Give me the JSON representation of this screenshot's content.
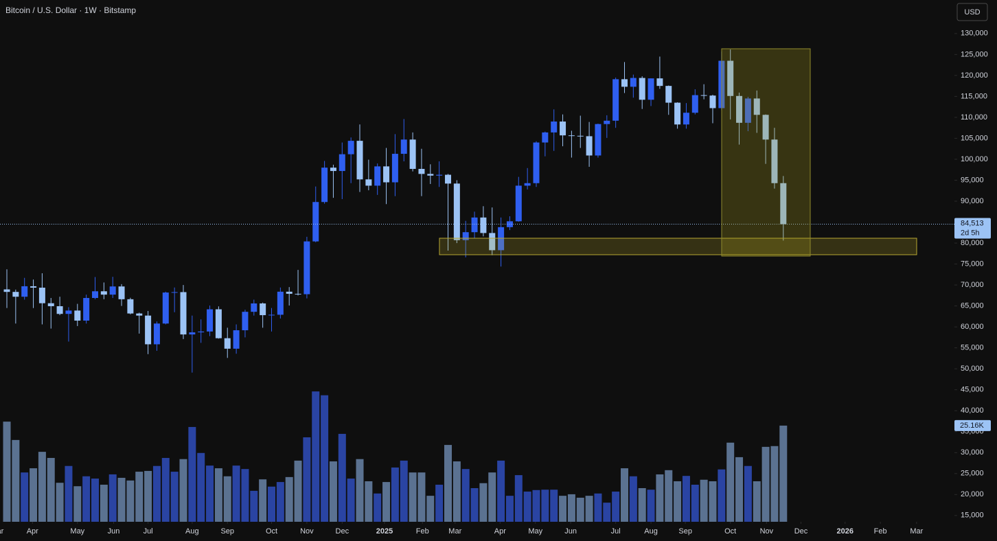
{
  "chart_data": {
    "type": "candlestick",
    "title": "Bitcoin / U.S. Dollar · 1W · Bitstamp",
    "currency": "USD",
    "open": [
      68950,
      68350,
      67200,
      69700,
      69360,
      65650,
      64940,
      63100,
      63900,
      61500,
      66900,
      68500,
      67700,
      69650,
      66600,
      63200,
      62700,
      55850,
      60800,
      68200,
      68300,
      58200,
      58700,
      58900,
      64200,
      57300,
      54800,
      59200,
      63600,
      65600,
      62800,
      62900,
      68400,
      67900,
      67800,
      80400,
      89800,
      98000,
      97200,
      101200,
      104400,
      95200,
      93700,
      98300,
      94500,
      101300,
      104700,
      97700,
      96500,
      96100,
      96300,
      94200,
      80700,
      82600,
      86100,
      82400,
      78300,
      83800,
      85200,
      93700,
      94300,
      104000,
      106400,
      109000,
      105700,
      105600,
      105500,
      100900,
      108400,
      109200,
      119100,
      117300,
      119400,
      114200,
      119300,
      117500,
      113500,
      108300,
      111100,
      115300,
      115200,
      112200,
      123500,
      115100,
      108700,
      114500,
      110600,
      104700,
      94300
    ],
    "high": [
      73750,
      68900,
      71700,
      71300,
      72800,
      66900,
      67200,
      64700,
      65500,
      67700,
      71900,
      70600,
      71950,
      70200,
      66950,
      63400,
      63800,
      61300,
      68400,
      69400,
      70000,
      62700,
      61800,
      65100,
      64900,
      59800,
      60600,
      64100,
      66500,
      65800,
      64500,
      69400,
      69500,
      73600,
      81500,
      93500,
      99600,
      98700,
      104000,
      105200,
      108300,
      99900,
      99000,
      102700,
      106000,
      109600,
      106400,
      102500,
      98800,
      99500,
      96500,
      95000,
      85300,
      87500,
      88800,
      88500,
      86100,
      86400,
      95800,
      97900,
      104300,
      106600,
      111900,
      110700,
      106800,
      110400,
      108900,
      108500,
      110500,
      119500,
      123200,
      120200,
      119800,
      119300,
      124500,
      117600,
      113600,
      113400,
      116700,
      117900,
      115400,
      125700,
      126200,
      115900,
      114900,
      116400,
      110700,
      107500,
      96000
    ],
    "low": [
      64500,
      60800,
      66500,
      64500,
      60600,
      59600,
      62800,
      56500,
      60200,
      60800,
      66600,
      66600,
      66900,
      65000,
      63000,
      58400,
      53500,
      54300,
      60600,
      63500,
      57100,
      49100,
      56200,
      57800,
      57200,
      52600,
      53600,
      57500,
      62700,
      59800,
      58900,
      62000,
      65100,
      67500,
      66800,
      80200,
      89400,
      90800,
      90500,
      94300,
      92200,
      92600,
      91500,
      89300,
      91200,
      99500,
      97100,
      91200,
      94100,
      93400,
      78200,
      80000,
      76600,
      81200,
      81600,
      77100,
      74400,
      83100,
      85100,
      92800,
      93400,
      100700,
      102000,
      103100,
      100400,
      102700,
      98200,
      100400,
      105100,
      107500,
      115800,
      114700,
      112000,
      112700,
      116800,
      110600,
      107300,
      107300,
      110700,
      114300,
      108600,
      111700,
      109500,
      103500,
      106700,
      106300,
      98900,
      93000,
      80600
    ],
    "close": [
      68350,
      67200,
      69700,
      69360,
      65650,
      64940,
      63100,
      63900,
      61500,
      66900,
      68500,
      67700,
      69650,
      66600,
      63200,
      62700,
      55850,
      60800,
      68200,
      68300,
      58200,
      58700,
      58900,
      64200,
      57300,
      54800,
      59200,
      63600,
      65600,
      62800,
      62900,
      68400,
      67900,
      67800,
      80400,
      89800,
      98000,
      97200,
      101200,
      104400,
      95200,
      93700,
      98300,
      94500,
      101300,
      104700,
      97700,
      96500,
      96100,
      96300,
      94200,
      80700,
      82600,
      86100,
      82400,
      78300,
      83800,
      85200,
      93700,
      94300,
      104000,
      106400,
      109000,
      105700,
      105600,
      105500,
      100900,
      108400,
      109200,
      119100,
      117300,
      119400,
      114200,
      119300,
      117500,
      113500,
      108300,
      111100,
      115300,
      115200,
      112200,
      123500,
      115100,
      108700,
      114500,
      110600,
      104700,
      94300,
      84513
    ],
    "close_label": "84,513",
    "countdown": "2d 5h",
    "volume": [
      26200,
      21400,
      12900,
      14000,
      18300,
      16700,
      10200,
      14600,
      9300,
      11900,
      11300,
      9700,
      12400,
      11500,
      10800,
      13100,
      13300,
      14600,
      16700,
      13100,
      16400,
      24800,
      18000,
      14700,
      14000,
      11900,
      14700,
      13800,
      8100,
      11100,
      9200,
      10400,
      11700,
      16000,
      22100,
      34100,
      33100,
      15800,
      23000,
      11300,
      16400,
      10600,
      7400,
      10400,
      14200,
      16000,
      12900,
      12900,
      6800,
      9700,
      20100,
      15800,
      13800,
      8800,
      10100,
      12900,
      16000,
      6800,
      12200,
      7900,
      8300,
      8400,
      8400,
      6800,
      7200,
      6300,
      6800,
      7400,
      5000,
      7900,
      14000,
      11900,
      8800,
      8400,
      12400,
      13500,
      10600,
      12000,
      9700,
      11000,
      10600,
      13700,
      20700,
      16900,
      14600,
      10600,
      19600,
      19800,
      25160
    ],
    "volume_label": "25.16K",
    "volume_lim": [
      0,
      136500
    ],
    "ylim": [
      13500,
      138000
    ],
    "yticks": [
      {
        "value": 130000,
        "label": "130,000"
      },
      {
        "value": 125000,
        "label": "125,000"
      },
      {
        "value": 120000,
        "label": "120,000"
      },
      {
        "value": 115000,
        "label": "115,000"
      },
      {
        "value": 110000,
        "label": "110,000"
      },
      {
        "value": 105000,
        "label": "105,000"
      },
      {
        "value": 100000,
        "label": "100,000"
      },
      {
        "value": 95000,
        "label": "95,000"
      },
      {
        "value": 90000,
        "label": "90,000"
      },
      {
        "value": 85000,
        "label": "85,000"
      },
      {
        "value": 80000,
        "label": "80,000"
      },
      {
        "value": 75000,
        "label": "75,000"
      },
      {
        "value": 70000,
        "label": "70,000"
      },
      {
        "value": 65000,
        "label": "65,000"
      },
      {
        "value": 60000,
        "label": "60,000"
      },
      {
        "value": 55000,
        "label": "55,000"
      },
      {
        "value": 50000,
        "label": "50,000"
      },
      {
        "value": 45000,
        "label": "45,000"
      },
      {
        "value": 40000,
        "label": "40,000"
      },
      {
        "value": 35000,
        "label": "35,000"
      },
      {
        "value": 30000,
        "label": "30,000"
      },
      {
        "value": 25000,
        "label": "25,000"
      },
      {
        "value": 20000,
        "label": "20,000"
      },
      {
        "value": 15000,
        "label": "15,000"
      }
    ],
    "xticks": [
      {
        "value": -1.1,
        "label": "Mar"
      },
      {
        "value": 2.9,
        "label": "Apr"
      },
      {
        "value": 8.0,
        "label": "May"
      },
      {
        "value": 12.1,
        "label": "Jun"
      },
      {
        "value": 16.0,
        "label": "Jul"
      },
      {
        "value": 21.0,
        "label": "Aug"
      },
      {
        "value": 25.0,
        "label": "Sep"
      },
      {
        "value": 30.0,
        "label": "Oct"
      },
      {
        "value": 34.0,
        "label": "Nov"
      },
      {
        "value": 38.0,
        "label": "Dec"
      },
      {
        "value": 42.8,
        "label": "2025"
      },
      {
        "value": 47.1,
        "label": "Feb"
      },
      {
        "value": 50.8,
        "label": "Mar"
      },
      {
        "value": 55.9,
        "label": "Apr"
      },
      {
        "value": 59.9,
        "label": "May"
      },
      {
        "value": 63.9,
        "label": "Jun"
      },
      {
        "value": 69.0,
        "label": "Jul"
      },
      {
        "value": 73.0,
        "label": "Aug"
      },
      {
        "value": 76.9,
        "label": "Sep"
      },
      {
        "value": 82.0,
        "label": "Oct"
      },
      {
        "value": 86.1,
        "label": "Nov"
      },
      {
        "value": 90.0,
        "label": "Dec"
      },
      {
        "value": 95.0,
        "label": "2026"
      },
      {
        "value": 99.0,
        "label": "Feb"
      },
      {
        "value": 103.1,
        "label": "Mar"
      }
    ],
    "up_color": "#2f5ff0",
    "down_color": "#9cc3f5",
    "volume_up_color": "#2a44a3",
    "volume_down_color": "#5b7291",
    "grid": false
  }
}
